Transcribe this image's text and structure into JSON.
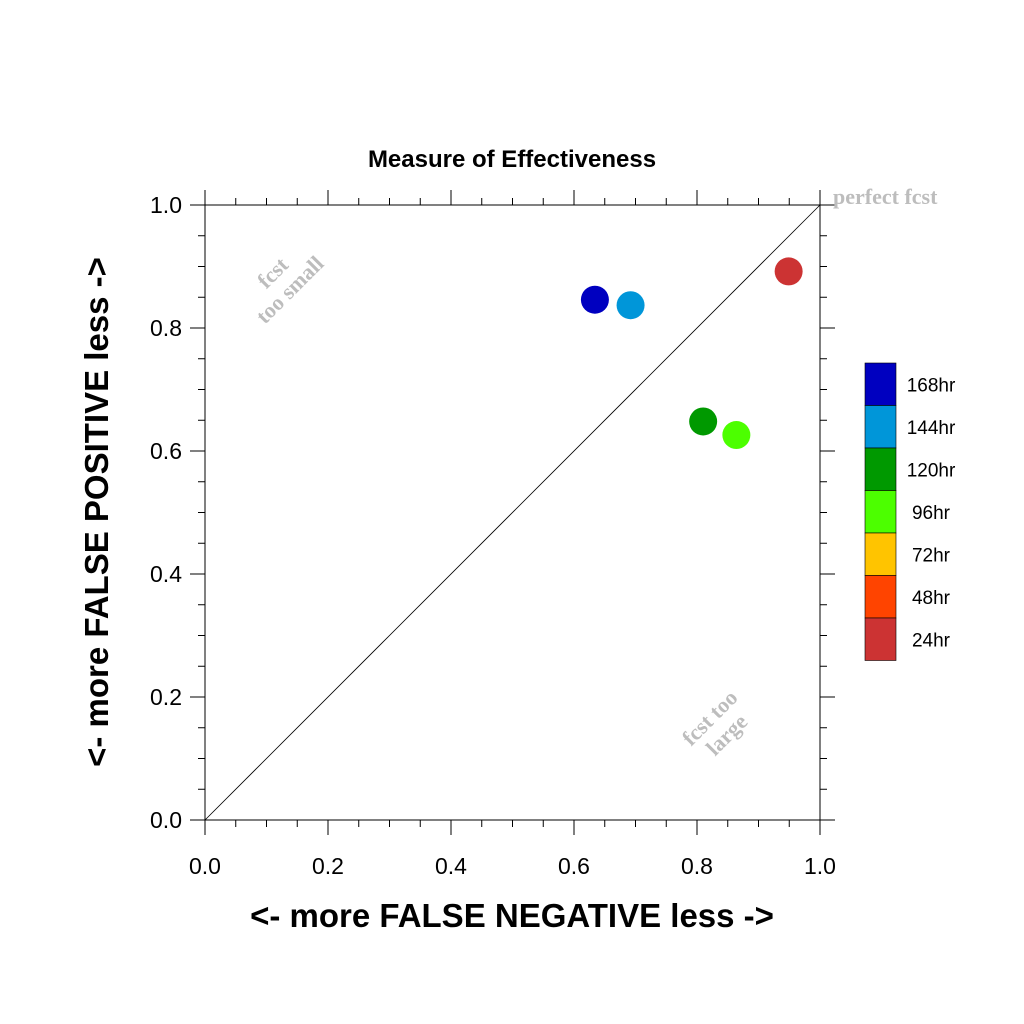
{
  "chart_data": {
    "type": "scatter",
    "title": "Measure of Effectiveness",
    "xlabel": "<- more   FALSE NEGATIVE   less ->",
    "ylabel": "<- more   FALSE POSITIVE   less ->",
    "xlim": [
      0,
      1
    ],
    "ylim": [
      0,
      1
    ],
    "xticks": [
      "0.0",
      "0.2",
      "0.4",
      "0.6",
      "0.8",
      "1.0"
    ],
    "yticks": [
      "0.0",
      "0.2",
      "0.4",
      "0.6",
      "0.8",
      "1.0"
    ],
    "grid": false,
    "diagonal_line": true,
    "annotations": {
      "perfect": "perfect fcst",
      "too_small": [
        "fcst",
        "too small"
      ],
      "too_large": [
        "fcst too",
        "large"
      ]
    },
    "series": [
      {
        "name": "168hr",
        "color": "#0000c0",
        "x": 0.634,
        "y": 0.846
      },
      {
        "name": "144hr",
        "color": "#0096d9",
        "x": 0.692,
        "y": 0.837
      },
      {
        "name": "120hr",
        "color": "#009900",
        "x": 0.81,
        "y": 0.648
      },
      {
        "name": "96hr",
        "color": "#4cff00",
        "x": 0.864,
        "y": 0.626
      },
      {
        "name": "72hr",
        "color": "#ffc400",
        "x": null,
        "y": null
      },
      {
        "name": "48hr",
        "color": "#ff4400",
        "x": null,
        "y": null
      },
      {
        "name": "24hr",
        "color": "#cc3333",
        "x": 0.949,
        "y": 0.892
      }
    ],
    "legend_position": "right"
  }
}
